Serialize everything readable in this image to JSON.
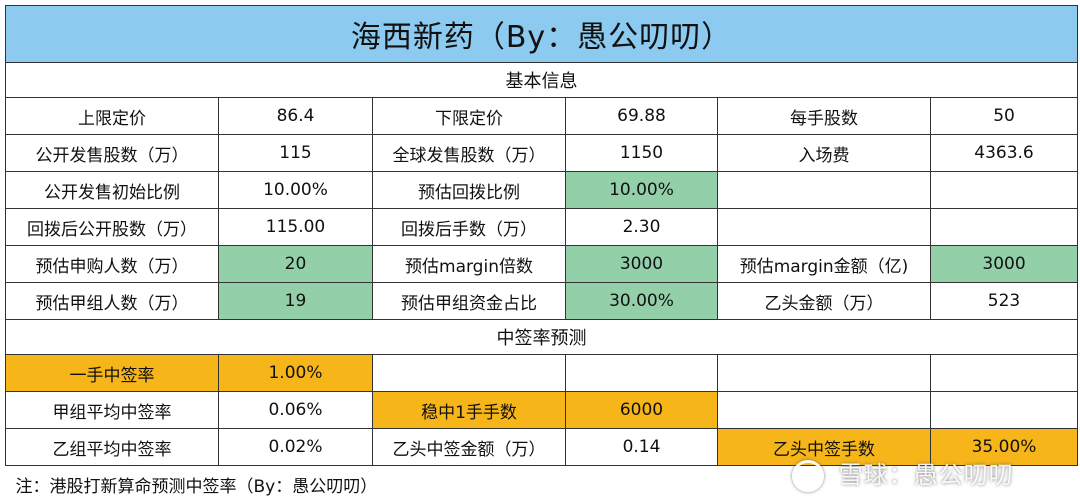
{
  "title": "海西新药（By：愚公叨叨）",
  "section_basic": "基本信息",
  "basic_rows": [
    [
      "上限定价",
      "86.4",
      "下限定价",
      "69.88",
      "每手股数",
      "50"
    ],
    [
      "公开发售股数（万）",
      "115",
      "全球发售股数（万）",
      "1150",
      "入场费",
      "4363.6"
    ],
    [
      "公开发售初始比例",
      "10.00%",
      "预估回拨比例",
      "10.00%",
      "",
      ""
    ],
    [
      "回拨后公开股数（万）",
      "115.00",
      "回拨后手数（万）",
      "2.30",
      "",
      ""
    ],
    [
      "预估申购人数（万）",
      "20",
      "预估margin倍数",
      "3000",
      "预估margin金额（亿)",
      "3000"
    ],
    [
      "预估甲组人数（万）",
      "19",
      "预估甲组资金占比",
      "30.00%",
      "乙头金额（万）",
      "523"
    ]
  ],
  "section_prediction": "中签率预测",
  "prediction_rows": [
    [
      "一手中签率",
      "1.00%",
      "",
      "",
      "",
      ""
    ],
    [
      "甲组平均中签率",
      "0.06%",
      "稳中1手手数",
      "6000",
      "",
      ""
    ],
    [
      "乙组平均中签率",
      "0.02%",
      "乙头中签金额（万）",
      "0.14",
      "乙头中签手数",
      "35.00%"
    ]
  ],
  "note": "注：港股打新算命预测中签率（By：愚公叨叨）",
  "watermark": "雪球：愚公叨叨",
  "colors": {
    "title_bg": "#8ccaf0",
    "input_green": "#93d0a9",
    "highlight_orange": "#f6b518"
  }
}
